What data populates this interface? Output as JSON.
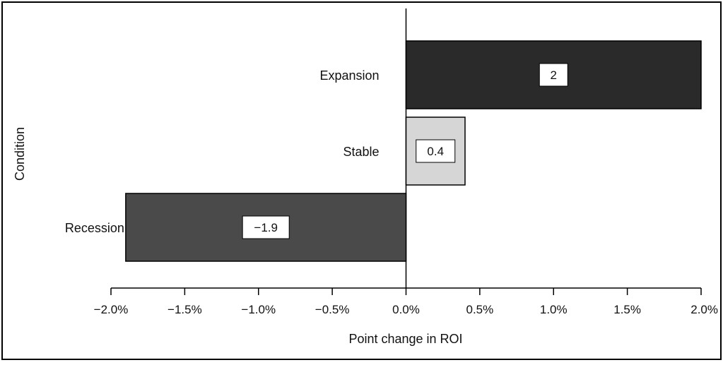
{
  "chart_data": {
    "type": "bar",
    "orientation": "horizontal",
    "categories": [
      "Expansion",
      "Stable",
      "Recession"
    ],
    "values": [
      2.0,
      0.4,
      -1.9
    ],
    "data_labels": [
      "2",
      "0.4",
      "−1.9"
    ],
    "bar_colors": [
      "#2a2a2a",
      "#d6d6d6",
      "#4a4a4a"
    ],
    "title": "",
    "xlabel": "Point change in ROI",
    "ylabel": "Condition",
    "xlim": [
      -2.0,
      2.0
    ],
    "xticks": [
      -2.0,
      -1.5,
      -1.0,
      -0.5,
      0.0,
      0.5,
      1.0,
      1.5,
      2.0
    ],
    "xtick_labels": [
      "−2.0%",
      "−1.5%",
      "−1.0%",
      "−0.5%",
      "0.0%",
      "0.5%",
      "1.0%",
      "1.5%",
      "2.0%"
    ],
    "grid": false,
    "legend": false
  }
}
